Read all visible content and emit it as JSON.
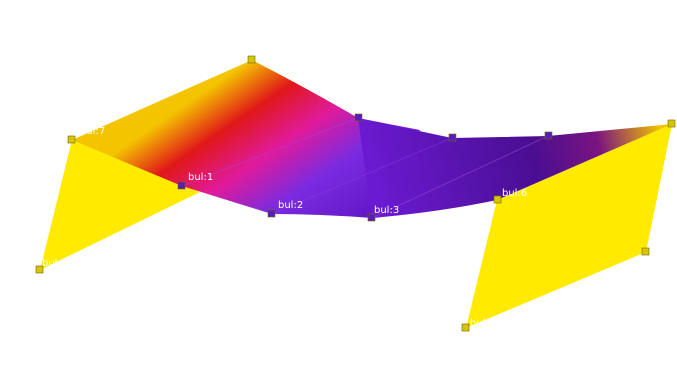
{
  "colors": {
    "background": "#ffffff",
    "panel_yellow": "#ffea00",
    "ramp": [
      "#f4c400",
      "#e01818",
      "#e01a9a",
      "#7a2be0",
      "#6418c8",
      "#4a0e92"
    ],
    "node_yellow": "#d8c400",
    "node_purple": "#5a1cc0"
  },
  "labels": {
    "node1": "bul:1",
    "node2": "bul:2",
    "node3": "bul:3",
    "node6": "bul:6",
    "node7": "bul:7",
    "left_base": "bul:",
    "right_base": "bul:"
  }
}
